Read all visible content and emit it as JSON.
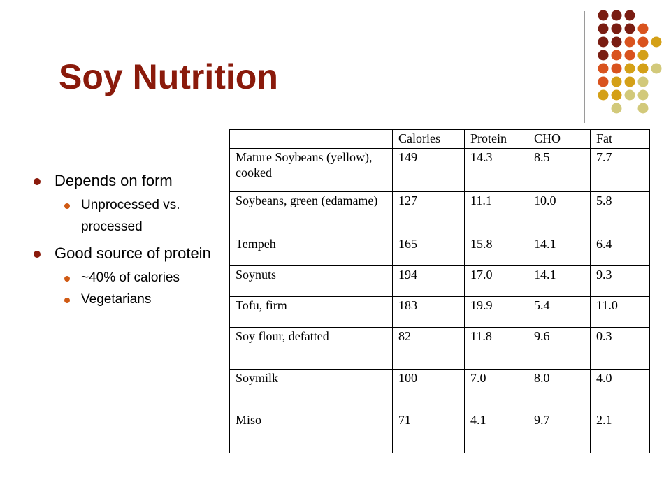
{
  "slide": {
    "title": "Soy Nutrition",
    "accent_colors": [
      "#7a1d12",
      "#d9531e",
      "#d4a017",
      "#d2c97a"
    ]
  },
  "bullets": [
    {
      "text": "Depends on form",
      "children": [
        "Unprocessed vs. processed"
      ]
    },
    {
      "text": "Good source of protein",
      "children": [
        "~40% of calories",
        "Vegetarians"
      ]
    }
  ],
  "table": {
    "headers": [
      "",
      "Calories",
      "Protein",
      "CHO",
      "Fat"
    ],
    "rows": [
      [
        "Mature Soybeans (yellow), cooked",
        "149",
        "14.3",
        "8.5",
        "7.7"
      ],
      [
        "Soybeans, green (edamame)",
        "127",
        "11.1",
        "10.0",
        "5.8"
      ],
      [
        "Tempeh",
        "165",
        "15.8",
        "14.1",
        "6.4"
      ],
      [
        "Soynuts",
        "194",
        "17.0",
        "14.1",
        "9.3"
      ],
      [
        "Tofu, firm",
        "183",
        "19.9",
        "5.4",
        "11.0"
      ],
      [
        "Soy flour, defatted",
        "82",
        "11.8",
        "9.6",
        "0.3"
      ],
      [
        "Soymilk",
        "100",
        "7.0",
        "8.0",
        "4.0"
      ],
      [
        "Miso",
        "71",
        "4.1",
        "9.7",
        "2.1"
      ]
    ]
  }
}
